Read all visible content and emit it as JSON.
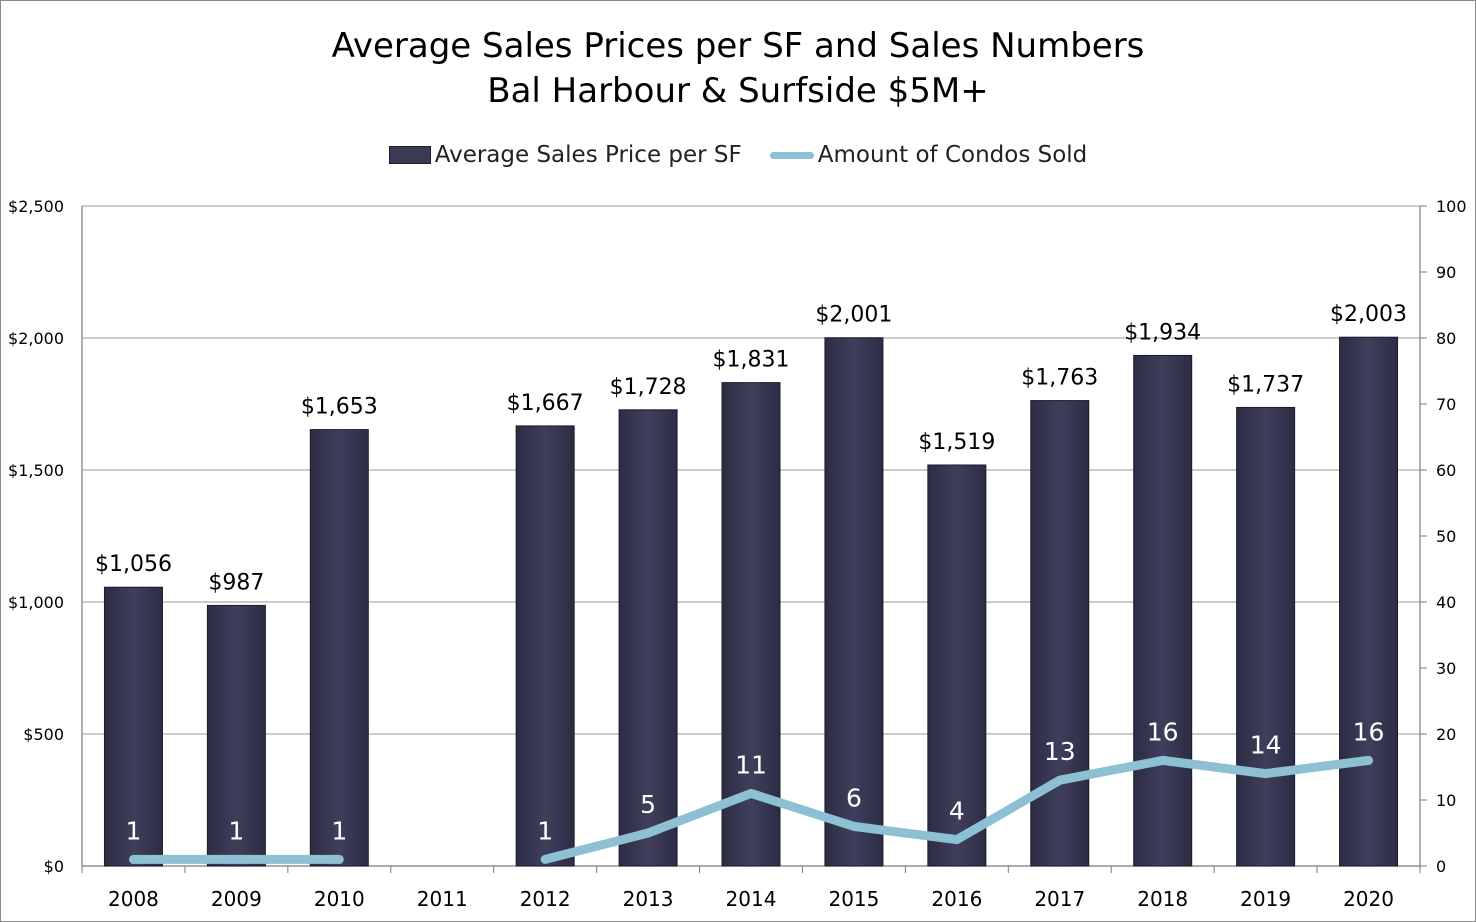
{
  "chart_data": {
    "type": "bar",
    "title": "Average Sales Prices per SF and Sales Numbers",
    "subtitle": "Bal Harbour & Surfside $5M+",
    "categories": [
      "2008",
      "2009",
      "2010",
      "2011",
      "2012",
      "2013",
      "2014",
      "2015",
      "2016",
      "2017",
      "2018",
      "2019",
      "2020"
    ],
    "series": [
      {
        "name": "Average Sales Price per SF",
        "type": "bar",
        "axis": "left",
        "color": "#3a3a55",
        "values": [
          1056,
          987,
          1653,
          null,
          1667,
          1728,
          1831,
          2001,
          1519,
          1763,
          1934,
          1737,
          2003
        ],
        "labels": [
          "$1,056",
          "$987",
          "$1,653",
          "",
          "$1,667",
          "$1,728",
          "$1,831",
          "$2,001",
          "$1,519",
          "$1,763",
          "$1,934",
          "$1,737",
          "$2,003"
        ]
      },
      {
        "name": "Amount of Condos Sold",
        "type": "line",
        "axis": "right",
        "color": "#8ec0d4",
        "values": [
          1,
          1,
          1,
          null,
          1,
          5,
          11,
          6,
          4,
          13,
          16,
          14,
          16
        ],
        "labels": [
          "1",
          "1",
          "1",
          "",
          "1",
          "5",
          "11",
          "6",
          "4",
          "13",
          "16",
          "14",
          "16"
        ]
      }
    ],
    "y_left": {
      "min": 0,
      "max": 2500,
      "ticks": [
        "$0",
        "$500",
        "$1,000",
        "$1,500",
        "$2,000",
        "$2,500"
      ]
    },
    "y_right": {
      "min": 0,
      "max": 100,
      "ticks": [
        "0",
        "10",
        "20",
        "30",
        "40",
        "50",
        "60",
        "70",
        "80",
        "90",
        "100"
      ]
    },
    "grid": true,
    "legend": "top-center"
  }
}
